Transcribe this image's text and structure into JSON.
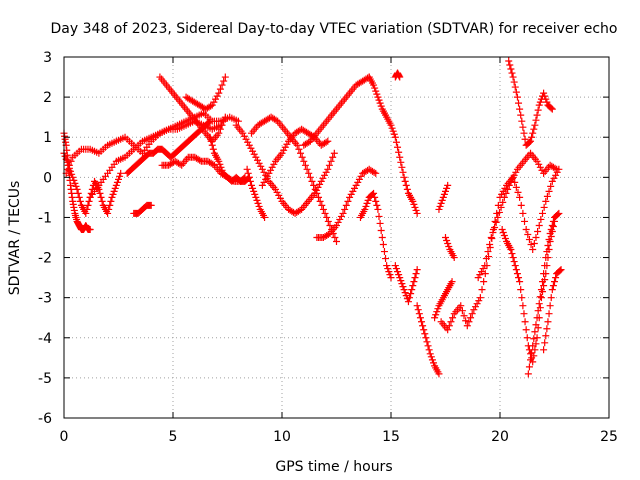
{
  "chart_data": {
    "type": "scatter",
    "title": "Day 348 of 2023, Sidereal Day-to-day VTEC variation (SDTVAR) for receiver echo",
    "xlabel": "GPS time / hours",
    "ylabel": "SDTVAR / TECUs",
    "xlim": [
      0,
      25
    ],
    "ylim": [
      -6,
      3
    ],
    "xticks": [
      "0",
      "5",
      "10",
      "15",
      "20",
      "25"
    ],
    "yticks": [
      "3",
      "2",
      "1",
      "0",
      "-1",
      "-2",
      "-3",
      "-4",
      "-5",
      "-6"
    ],
    "grid": true,
    "marker": "+",
    "color": "#ff0000",
    "series": [
      {
        "x": [
          0.0,
          0.1,
          0.2,
          0.3,
          0.4,
          0.5,
          0.6,
          0.7,
          0.8,
          0.9,
          1.0,
          1.1,
          1.2
        ],
        "y": [
          1.1,
          0.8,
          0.3,
          -0.2,
          -0.6,
          -0.9,
          -1.1,
          -1.2,
          -1.3,
          -1.3,
          -1.2,
          -1.3,
          -1.3
        ]
      },
      {
        "x": [
          0.0,
          0.2,
          0.4,
          0.6,
          0.8,
          1.0,
          1.2,
          1.4,
          1.6,
          1.8,
          2.0,
          2.2,
          2.4,
          2.6
        ],
        "y": [
          0.6,
          0.3,
          0.0,
          -0.3,
          -0.7,
          -0.9,
          -0.5,
          -0.1,
          -0.3,
          -0.7,
          -0.9,
          -0.5,
          -0.2,
          0.1
        ]
      },
      {
        "x": [
          0.1,
          0.4,
          0.8,
          1.2,
          1.6,
          2.0,
          2.4,
          2.8,
          3.2,
          3.6,
          4.0,
          4.4,
          4.8,
          5.2,
          5.6,
          6.0,
          6.4,
          6.8,
          7.2,
          7.6,
          8.0
        ],
        "y": [
          0.1,
          0.5,
          0.7,
          0.7,
          0.6,
          0.8,
          0.9,
          1.0,
          0.8,
          0.6,
          0.9,
          1.1,
          1.2,
          1.3,
          1.4,
          1.5,
          1.6,
          1.4,
          1.4,
          1.5,
          1.4
        ]
      },
      {
        "x": [
          1.2,
          1.6,
          2.0,
          2.4,
          2.8,
          3.2,
          3.6,
          4.0,
          4.4,
          4.8,
          5.2,
          5.6,
          6.0,
          6.4,
          6.8,
          7.2
        ],
        "y": [
          -0.5,
          -0.2,
          0.1,
          0.4,
          0.5,
          0.7,
          0.9,
          1.0,
          1.1,
          1.2,
          1.2,
          1.3,
          1.4,
          1.3,
          1.2,
          1.3
        ]
      },
      {
        "x": [
          3.2,
          3.4,
          3.6,
          3.8,
          4.0
        ],
        "y": [
          -0.9,
          -0.9,
          -0.8,
          -0.7,
          -0.7
        ]
      },
      {
        "x": [
          2.9,
          3.1,
          3.3,
          3.5,
          3.7,
          3.9,
          4.1,
          4.3,
          4.5,
          4.7,
          4.9,
          5.1,
          5.3,
          5.5,
          5.7,
          5.9,
          6.1,
          6.3,
          6.5,
          6.7
        ],
        "y": [
          0.1,
          0.2,
          0.3,
          0.4,
          0.5,
          0.6,
          0.6,
          0.7,
          0.7,
          0.6,
          0.5,
          0.6,
          0.7,
          0.8,
          0.9,
          1.0,
          1.1,
          1.2,
          1.3,
          1.4
        ]
      },
      {
        "x": [
          4.4,
          4.7,
          5.0,
          5.3,
          5.6,
          5.9,
          6.2,
          6.5,
          6.8,
          7.1,
          7.4
        ],
        "y": [
          2.5,
          2.3,
          2.1,
          1.9,
          1.7,
          1.5,
          1.3,
          1.1,
          0.9,
          1.1,
          1.5
        ]
      },
      {
        "x": [
          5.6,
          5.9,
          6.2,
          6.5,
          6.8,
          7.1,
          7.4
        ],
        "y": [
          2.0,
          1.9,
          1.8,
          1.7,
          1.8,
          2.1,
          2.5
        ]
      },
      {
        "x": [
          4.5,
          4.8,
          5.1,
          5.4,
          5.7,
          6.0,
          6.3,
          6.6,
          6.9,
          7.2,
          7.5,
          7.8,
          8.1,
          8.3
        ],
        "y": [
          0.3,
          0.3,
          0.4,
          0.3,
          0.5,
          0.5,
          0.4,
          0.4,
          0.3,
          0.1,
          0.0,
          -0.1,
          -0.1,
          0.0
        ]
      },
      {
        "x": [
          6.7,
          6.9,
          7.1,
          7.3,
          7.5,
          7.7,
          7.9,
          8.1,
          8.3,
          8.5
        ],
        "y": [
          1.0,
          0.6,
          0.4,
          0.1,
          0.0,
          -0.1,
          0.0,
          -0.1,
          -0.1,
          0.0
        ]
      },
      {
        "x": [
          7.9,
          8.2,
          8.5,
          8.8,
          9.1,
          9.4,
          9.7,
          10.0,
          10.3,
          10.6,
          10.9,
          11.2,
          11.5,
          11.8,
          12.1,
          12.4
        ],
        "y": [
          1.3,
          1.1,
          0.8,
          0.5,
          0.2,
          -0.1,
          -0.3,
          -0.6,
          -0.8,
          -0.9,
          -0.8,
          -0.6,
          -0.4,
          -0.1,
          0.2,
          0.6
        ]
      },
      {
        "x": [
          8.4,
          8.6,
          8.8,
          9.0,
          9.2
        ],
        "y": [
          0.2,
          -0.2,
          -0.5,
          -0.8,
          -1.0
        ]
      },
      {
        "x": [
          8.6,
          8.9,
          9.2,
          9.5,
          9.8,
          10.1,
          10.4,
          10.7,
          11.0,
          11.3,
          11.6,
          11.9,
          12.2,
          12.5
        ],
        "y": [
          1.1,
          1.3,
          1.4,
          1.5,
          1.4,
          1.2,
          1.0,
          0.8,
          0.4,
          0.0,
          -0.4,
          -0.8,
          -1.2,
          -1.6
        ]
      },
      {
        "x": [
          9.1,
          9.4,
          9.7,
          10.0,
          10.3,
          10.6,
          10.9,
          11.2,
          11.5,
          11.8,
          12.1
        ],
        "y": [
          -0.2,
          0.1,
          0.4,
          0.6,
          0.9,
          1.1,
          1.2,
          1.1,
          1.0,
          0.8,
          0.9
        ]
      },
      {
        "x": [
          11.0,
          11.3,
          11.6,
          11.9,
          12.2,
          12.5,
          12.8,
          13.1,
          13.4,
          13.7,
          14.0
        ],
        "y": [
          0.8,
          0.9,
          1.1,
          1.3,
          1.5,
          1.7,
          1.9,
          2.1,
          2.3,
          2.4,
          2.5
        ]
      },
      {
        "x": [
          11.6,
          11.9,
          12.2,
          12.5,
          12.8,
          13.1,
          13.4,
          13.7,
          14.0,
          14.3
        ],
        "y": [
          -1.5,
          -1.5,
          -1.4,
          -1.2,
          -0.9,
          -0.5,
          -0.2,
          0.1,
          0.2,
          0.1
        ]
      },
      {
        "x": [
          14.0,
          14.2,
          14.4,
          14.6,
          14.8,
          15.0,
          15.2,
          15.4,
          15.6,
          15.8,
          16.0,
          16.2
        ],
        "y": [
          2.5,
          2.3,
          2.0,
          1.7,
          1.5,
          1.3,
          1.0,
          0.5,
          0.0,
          -0.4,
          -0.6,
          -0.9
        ]
      },
      {
        "x": [
          13.6,
          13.8,
          14.0,
          14.2,
          14.4,
          14.6,
          14.8,
          15.0
        ],
        "y": [
          -1.0,
          -0.8,
          -0.5,
          -0.4,
          -0.8,
          -1.5,
          -2.2,
          -2.5
        ]
      },
      {
        "x": [
          15.2,
          15.4,
          15.6,
          15.8,
          16.0,
          16.2
        ],
        "y": [
          -2.2,
          -2.5,
          -2.8,
          -3.1,
          -2.7,
          -2.3
        ]
      },
      {
        "x": [
          15.2,
          15.3,
          15.4
        ],
        "y": [
          2.5,
          2.6,
          2.5
        ]
      },
      {
        "x": [
          16.2,
          16.4,
          16.6,
          16.8,
          17.0,
          17.2
        ],
        "y": [
          -3.2,
          -3.6,
          -4.0,
          -4.4,
          -4.7,
          -4.9
        ]
      },
      {
        "x": [
          17.0,
          17.2,
          17.4,
          17.6,
          17.8
        ],
        "y": [
          -3.5,
          -3.2,
          -3.0,
          -2.8,
          -2.6
        ]
      },
      {
        "x": [
          17.2,
          17.4,
          17.6
        ],
        "y": [
          -0.8,
          -0.5,
          -0.2
        ]
      },
      {
        "x": [
          17.3,
          17.6,
          17.9,
          18.2,
          18.5,
          18.8,
          19.1,
          19.4,
          19.7,
          20.0,
          20.3,
          20.6,
          20.9,
          21.2,
          21.5,
          21.8,
          22.1,
          22.4,
          22.7
        ],
        "y": [
          -3.6,
          -3.8,
          -3.4,
          -3.2,
          -3.7,
          -3.3,
          -3.0,
          -2.2,
          -1.3,
          -0.5,
          -0.2,
          0.0,
          -0.5,
          -1.3,
          -1.8,
          -1.2,
          -0.6,
          -0.1,
          0.2
        ]
      },
      {
        "x": [
          17.5,
          17.7,
          17.9
        ],
        "y": [
          -1.5,
          -1.8,
          -2.0
        ]
      },
      {
        "x": [
          19.0,
          19.3,
          19.6,
          19.9,
          20.2,
          20.5,
          20.8,
          21.1,
          21.4,
          21.7,
          22.0,
          22.3,
          22.6
        ],
        "y": [
          -2.5,
          -2.2,
          -1.5,
          -1.0,
          -0.5,
          -0.1,
          0.2,
          0.4,
          0.6,
          0.4,
          0.1,
          0.3,
          0.2
        ]
      },
      {
        "x": [
          20.4,
          20.6,
          20.8,
          21.0,
          21.2,
          21.4,
          21.6,
          21.8,
          22.0,
          22.2,
          22.4
        ],
        "y": [
          2.9,
          2.5,
          2.0,
          1.4,
          0.8,
          0.9,
          1.3,
          1.8,
          2.1,
          1.8,
          1.7
        ]
      },
      {
        "x": [
          20.1,
          20.3,
          20.5,
          20.7,
          20.9,
          21.1,
          21.3,
          21.5,
          21.7,
          21.9,
          22.1,
          22.3,
          22.5
        ],
        "y": [
          -1.3,
          -1.6,
          -1.8,
          -2.2,
          -2.6,
          -3.4,
          -4.2,
          -4.6,
          -4.0,
          -3.0,
          -2.4,
          -1.6,
          -1.1
        ]
      },
      {
        "x": [
          21.3,
          21.5,
          21.7,
          21.9,
          22.1,
          22.3,
          22.5,
          22.7
        ],
        "y": [
          -4.9,
          -4.2,
          -3.5,
          -2.8,
          -2.0,
          -1.4,
          -1.0,
          -0.9
        ]
      },
      {
        "x": [
          22.0,
          22.2,
          22.4,
          22.6,
          22.8
        ],
        "y": [
          -4.3,
          -3.6,
          -2.8,
          -2.4,
          -2.3
        ]
      }
    ]
  }
}
